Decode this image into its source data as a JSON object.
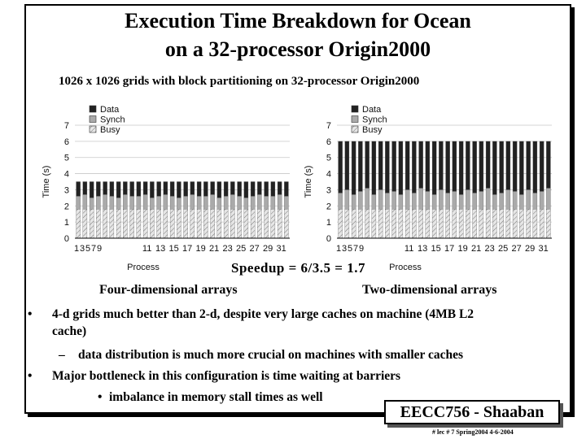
{
  "slide": {
    "title_line1": "Execution Time Breakdown for Ocean",
    "title_line2": "on a 32-processor Origin2000",
    "subtitle": "1026 x 1026 grids with block partitioning on 32-processor Origin2000",
    "speedup": "Speedup = 6/3.5 = 1.7",
    "caption_left": "Four-dimensional arrays",
    "caption_right": "Two-dimensional arrays",
    "bullets": [
      {
        "marker": "•",
        "text": "4-d grids much better than 2-d, despite very large caches on machine (4MB L2"
      },
      {
        "marker": "",
        "text": "cache)"
      },
      {
        "marker": "–",
        "text": "data distribution is much more crucial on machines with smaller caches"
      },
      {
        "marker": "•",
        "text": "Major bottleneck in this configuration is time waiting at barriers"
      },
      {
        "marker": "•",
        "text": "imbalance in memory stall times as well"
      }
    ],
    "footer": "EECC756 - Shaaban",
    "footnote": "#  lec # 7   Spring2004  4-6-2004"
  },
  "colors": {
    "data": "#222222",
    "synch": "#aaaaaa",
    "busy": "#e6e6e6"
  },
  "chart_data": [
    {
      "type": "bar",
      "stacked": true,
      "title": "",
      "xlabel": "Process",
      "ylabel": "Time (s)",
      "ylim": [
        0,
        7
      ],
      "yticks": [
        0,
        1,
        2,
        3,
        4,
        5,
        6,
        7
      ],
      "xtick_labels": [
        "1",
        "3",
        "5",
        "7",
        "9",
        "11",
        "13",
        "15",
        "17",
        "19",
        "21",
        "23",
        "25",
        "27",
        "29",
        "31"
      ],
      "legend": [
        "Data",
        "Synch",
        "Busy"
      ],
      "legend_position": "top-left",
      "categories": [
        1,
        2,
        3,
        4,
        5,
        6,
        7,
        8,
        9,
        10,
        11,
        12,
        13,
        14,
        15,
        16,
        17,
        18,
        19,
        20,
        21,
        22,
        23,
        24,
        25,
        26,
        27,
        28,
        29,
        30,
        31,
        32
      ],
      "series": [
        {
          "name": "Busy",
          "values": [
            1.8,
            1.8,
            1.8,
            1.8,
            1.8,
            1.8,
            1.8,
            1.8,
            1.8,
            1.8,
            1.8,
            1.8,
            1.8,
            1.8,
            1.8,
            1.8,
            1.8,
            1.8,
            1.8,
            1.8,
            1.8,
            1.8,
            1.8,
            1.8,
            1.8,
            1.8,
            1.8,
            1.8,
            1.8,
            1.8,
            1.8,
            1.8
          ]
        },
        {
          "name": "Synch",
          "values": [
            0.8,
            0.9,
            0.7,
            0.8,
            0.9,
            0.8,
            0.7,
            0.9,
            0.8,
            0.8,
            0.9,
            0.7,
            0.8,
            0.9,
            0.8,
            0.7,
            0.8,
            0.9,
            0.8,
            0.8,
            0.9,
            0.7,
            0.8,
            0.9,
            0.8,
            0.7,
            0.8,
            0.9,
            0.8,
            0.8,
            0.9,
            0.8
          ]
        },
        {
          "name": "Data",
          "values": [
            0.9,
            0.8,
            1.0,
            0.9,
            0.8,
            0.9,
            1.0,
            0.8,
            0.9,
            0.9,
            0.8,
            1.0,
            0.9,
            0.8,
            0.9,
            1.0,
            0.9,
            0.8,
            0.9,
            0.9,
            0.8,
            1.0,
            0.9,
            0.8,
            0.9,
            1.0,
            0.9,
            0.8,
            0.9,
            0.9,
            0.8,
            0.9
          ]
        }
      ]
    },
    {
      "type": "bar",
      "stacked": true,
      "title": "",
      "xlabel": "Process",
      "ylabel": "Time (s)",
      "ylim": [
        0,
        7
      ],
      "yticks": [
        0,
        1,
        2,
        3,
        4,
        5,
        6,
        7
      ],
      "xtick_labels": [
        "1",
        "3",
        "5",
        "7",
        "9",
        "11",
        "13",
        "15",
        "17",
        "19",
        "21",
        "23",
        "25",
        "27",
        "29",
        "31"
      ],
      "legend": [
        "Data",
        "Synch",
        "Busy"
      ],
      "legend_position": "top-left",
      "categories": [
        1,
        2,
        3,
        4,
        5,
        6,
        7,
        8,
        9,
        10,
        11,
        12,
        13,
        14,
        15,
        16,
        17,
        18,
        19,
        20,
        21,
        22,
        23,
        24,
        25,
        26,
        27,
        28,
        29,
        30,
        31,
        32
      ],
      "series": [
        {
          "name": "Busy",
          "values": [
            1.8,
            1.8,
            1.8,
            1.8,
            1.8,
            1.8,
            1.8,
            1.8,
            1.8,
            1.8,
            1.8,
            1.8,
            1.8,
            1.8,
            1.8,
            1.8,
            1.8,
            1.8,
            1.8,
            1.8,
            1.8,
            1.8,
            1.8,
            1.8,
            1.8,
            1.8,
            1.8,
            1.8,
            1.8,
            1.8,
            1.8,
            1.8
          ]
        },
        {
          "name": "Synch",
          "values": [
            1.0,
            1.2,
            0.9,
            1.1,
            1.3,
            0.9,
            1.2,
            1.0,
            1.1,
            0.9,
            1.2,
            1.0,
            1.3,
            1.1,
            0.9,
            1.2,
            1.0,
            1.1,
            0.9,
            1.2,
            1.0,
            1.1,
            1.3,
            0.9,
            1.0,
            1.2,
            1.1,
            0.9,
            1.2,
            1.0,
            1.1,
            1.3
          ]
        },
        {
          "name": "Data",
          "values": [
            3.2,
            3.0,
            3.3,
            3.1,
            2.9,
            3.3,
            3.0,
            3.2,
            3.1,
            3.3,
            3.0,
            3.2,
            2.9,
            3.1,
            3.3,
            3.0,
            3.2,
            3.1,
            3.3,
            3.0,
            3.2,
            3.1,
            2.9,
            3.3,
            3.2,
            3.0,
            3.1,
            3.3,
            3.0,
            3.2,
            3.1,
            2.9
          ]
        }
      ]
    }
  ]
}
